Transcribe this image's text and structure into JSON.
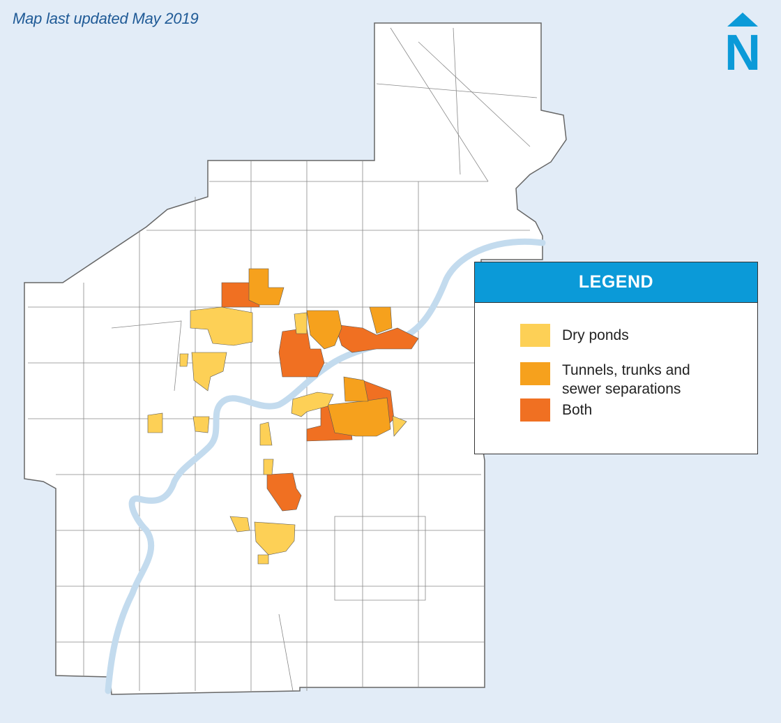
{
  "header": {
    "updated_text": "Map last updated May 2019"
  },
  "north_arrow": {
    "letter": "N",
    "icon": "north-arrow-icon",
    "color": "#0b9ad8"
  },
  "legend": {
    "title": "LEGEND",
    "header_color": "#0b9ad8",
    "items": [
      {
        "label": "Dry ponds",
        "color": "#fdd056"
      },
      {
        "label": "Tunnels, trunks and sewer separations",
        "color": "#f6a11d"
      },
      {
        "label": "Both",
        "color": "#f07022"
      }
    ]
  },
  "map": {
    "background_color": "#e2ecf7",
    "land_color": "#ffffff",
    "boundary_color": "#666666",
    "river_color": "#c3dbee"
  }
}
